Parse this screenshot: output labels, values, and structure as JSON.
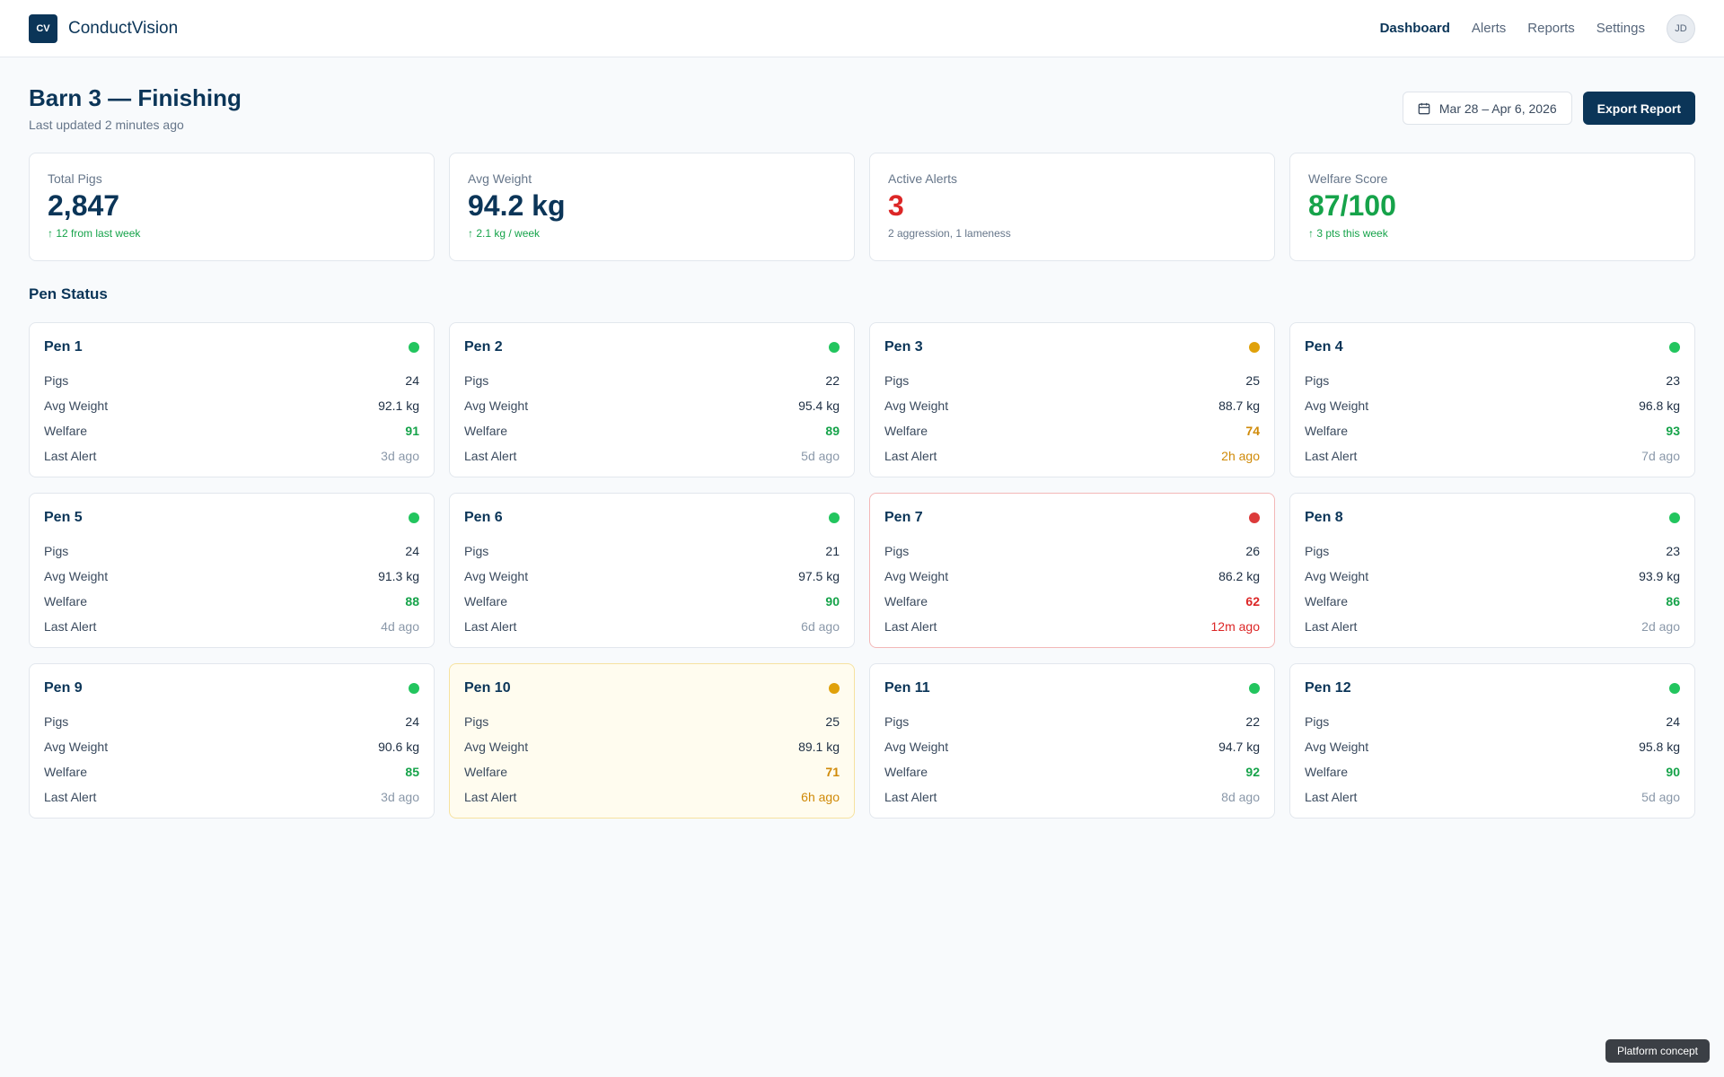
{
  "app": {
    "logo_text": "CV",
    "name": "ConductVision"
  },
  "nav": {
    "items": [
      {
        "label": "Dashboard",
        "active": true
      },
      {
        "label": "Alerts",
        "active": false
      },
      {
        "label": "Reports",
        "active": false
      },
      {
        "label": "Settings",
        "active": false
      }
    ],
    "avatar_initials": "JD"
  },
  "header": {
    "title": "Barn 3 — Finishing",
    "subtitle": "Last updated 2 minutes ago",
    "date_range": "Mar 28 – Apr 6, 2026",
    "date_icon": "calendar-icon",
    "export_label": "Export Report"
  },
  "stats": [
    {
      "label": "Total Pigs",
      "value": "2,847",
      "note": "↑ 12 from last week",
      "value_tone": "",
      "note_tone": "green"
    },
    {
      "label": "Avg Weight",
      "value": "94.2 kg",
      "note": "↑ 2.1 kg / week",
      "value_tone": "",
      "note_tone": "green"
    },
    {
      "label": "Active Alerts",
      "value": "3",
      "note": "2 aggression, 1 lameness",
      "value_tone": "red",
      "note_tone": "muted"
    },
    {
      "label": "Welfare Score",
      "value": "87/100",
      "note": "↑ 3 pts this week",
      "value_tone": "green",
      "note_tone": "green"
    }
  ],
  "section_title": "Pen Status",
  "row_labels": {
    "pigs": "Pigs",
    "weight": "Avg Weight",
    "welfare": "Welfare",
    "last_alert": "Last Alert"
  },
  "status_colors": {
    "ok": "#22c55e",
    "warning": "#e0a10a",
    "critical": "#dc3b3b"
  },
  "pens": [
    {
      "name": "Pen 1",
      "status": "ok",
      "pigs": "24",
      "weight": "92.1 kg",
      "welfare": "91",
      "last_alert": "3d ago"
    },
    {
      "name": "Pen 2",
      "status": "ok",
      "pigs": "22",
      "weight": "95.4 kg",
      "welfare": "89",
      "last_alert": "5d ago"
    },
    {
      "name": "Pen 3",
      "status": "warning",
      "pigs": "25",
      "weight": "88.7 kg",
      "welfare": "74",
      "last_alert": "2h ago"
    },
    {
      "name": "Pen 4",
      "status": "ok",
      "pigs": "23",
      "weight": "96.8 kg",
      "welfare": "93",
      "last_alert": "7d ago"
    },
    {
      "name": "Pen 5",
      "status": "ok",
      "pigs": "24",
      "weight": "91.3 kg",
      "welfare": "88",
      "last_alert": "4d ago"
    },
    {
      "name": "Pen 6",
      "status": "ok",
      "pigs": "21",
      "weight": "97.5 kg",
      "welfare": "90",
      "last_alert": "6d ago"
    },
    {
      "name": "Pen 7",
      "status": "critical",
      "pigs": "26",
      "weight": "86.2 kg",
      "welfare": "62",
      "last_alert": "12m ago"
    },
    {
      "name": "Pen 8",
      "status": "ok",
      "pigs": "23",
      "weight": "93.9 kg",
      "welfare": "86",
      "last_alert": "2d ago"
    },
    {
      "name": "Pen 9",
      "status": "ok",
      "pigs": "24",
      "weight": "90.6 kg",
      "welfare": "85",
      "last_alert": "3d ago"
    },
    {
      "name": "Pen 10",
      "status": "warning",
      "highlight": true,
      "pigs": "25",
      "weight": "89.1 kg",
      "welfare": "71",
      "last_alert": "6h ago"
    },
    {
      "name": "Pen 11",
      "status": "ok",
      "pigs": "22",
      "weight": "94.7 kg",
      "welfare": "92",
      "last_alert": "8d ago"
    },
    {
      "name": "Pen 12",
      "status": "ok",
      "pigs": "24",
      "weight": "95.8 kg",
      "welfare": "90",
      "last_alert": "5d ago"
    }
  ],
  "footer_badge": "Platform concept"
}
